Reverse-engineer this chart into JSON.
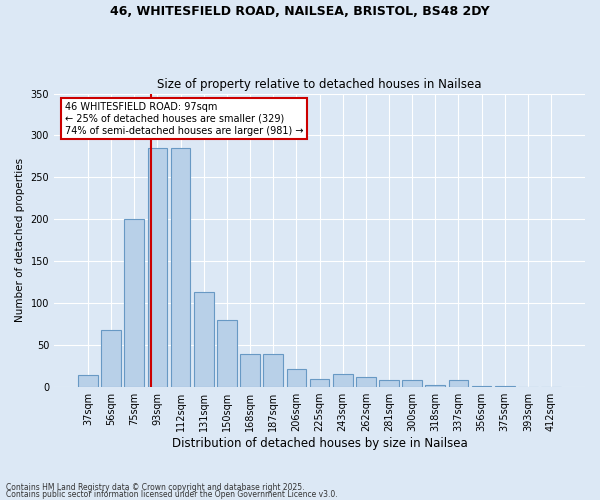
{
  "title1": "46, WHITESFIELD ROAD, NAILSEA, BRISTOL, BS48 2DY",
  "title2": "Size of property relative to detached houses in Nailsea",
  "xlabel": "Distribution of detached houses by size in Nailsea",
  "ylabel": "Number of detached properties",
  "categories": [
    "37sqm",
    "56sqm",
    "75sqm",
    "93sqm",
    "112sqm",
    "131sqm",
    "150sqm",
    "168sqm",
    "187sqm",
    "206sqm",
    "225sqm",
    "243sqm",
    "262sqm",
    "281sqm",
    "300sqm",
    "318sqm",
    "337sqm",
    "356sqm",
    "375sqm",
    "393sqm",
    "412sqm"
  ],
  "values": [
    15,
    68,
    200,
    285,
    285,
    113,
    80,
    40,
    40,
    22,
    10,
    16,
    12,
    8,
    8,
    2,
    8,
    1,
    1,
    0,
    0
  ],
  "bar_color": "#b8d0e8",
  "bar_edge_color": "#6899c4",
  "bg_color": "#dce8f5",
  "grid_color": "#ffffff",
  "vline_color": "#cc0000",
  "vline_pos": 2.71,
  "annotation_text": "46 WHITESFIELD ROAD: 97sqm\n← 25% of detached houses are smaller (329)\n74% of semi-detached houses are larger (981) →",
  "annotation_box_edgecolor": "#cc0000",
  "footer1": "Contains HM Land Registry data © Crown copyright and database right 2025.",
  "footer2": "Contains public sector information licensed under the Open Government Licence v3.0.",
  "ylim": [
    0,
    350
  ],
  "yticks": [
    0,
    50,
    100,
    150,
    200,
    250,
    300,
    350
  ]
}
